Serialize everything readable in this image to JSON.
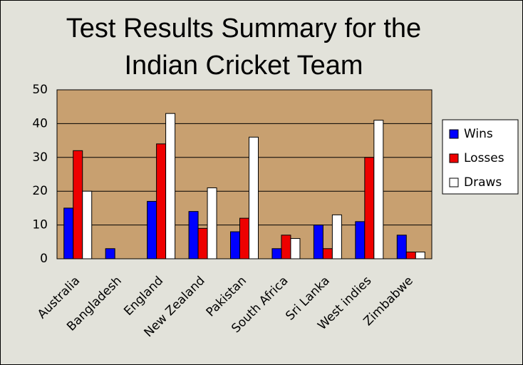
{
  "chart_data": {
    "type": "bar",
    "title": "Test Results Summary for the Indian Cricket Team",
    "categories": [
      "Australia",
      "Bangladesh",
      "England",
      "New Zealand",
      "Pakistan",
      "South Africa",
      "Sri Lanka",
      "West indies",
      "Zimbabwe"
    ],
    "series": [
      {
        "name": "Wins",
        "color": "#0000ff",
        "values": [
          15,
          3,
          17,
          14,
          8,
          3,
          10,
          11,
          7
        ]
      },
      {
        "name": "Losses",
        "color": "#ee0000",
        "values": [
          32,
          0,
          34,
          9,
          12,
          7,
          3,
          30,
          2
        ]
      },
      {
        "name": "Draws",
        "color": "#ffffff",
        "values": [
          20,
          0,
          43,
          21,
          36,
          6,
          13,
          41,
          2
        ]
      }
    ],
    "ylim": [
      0,
      50
    ],
    "yticks": [
      0,
      10,
      20,
      30,
      40,
      50
    ],
    "grid": true,
    "legend": "right",
    "plot_background": "#c8a070"
  }
}
